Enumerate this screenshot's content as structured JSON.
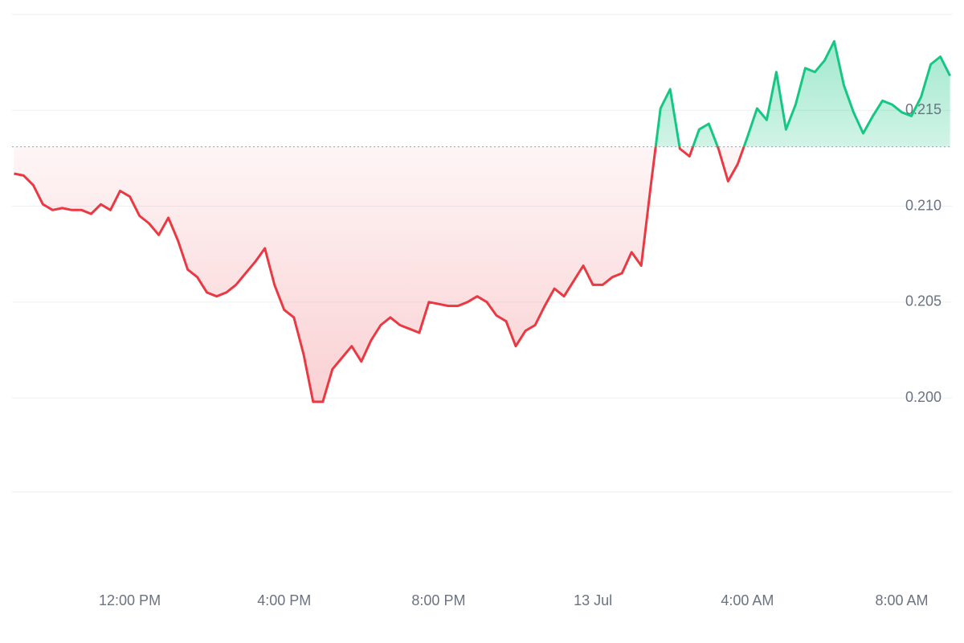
{
  "chart_data": {
    "type": "baseline-line",
    "x": [
      9,
      9.25,
      9.5,
      9.75,
      10,
      10.25,
      10.5,
      10.75,
      11,
      11.25,
      11.5,
      11.75,
      12,
      12.25,
      12.5,
      12.75,
      13,
      13.25,
      13.5,
      13.75,
      14,
      14.25,
      14.5,
      14.75,
      15,
      15.25,
      15.5,
      15.75,
      16,
      16.25,
      16.5,
      16.75,
      17,
      17.25,
      17.5,
      17.75,
      18,
      18.25,
      18.5,
      18.75,
      19,
      19.25,
      19.5,
      19.75,
      20,
      20.25,
      20.5,
      20.75,
      21,
      21.25,
      21.5,
      21.75,
      22,
      22.25,
      22.5,
      22.75,
      23,
      23.25,
      23.5,
      23.75,
      24,
      24.25,
      24.5,
      24.75,
      25,
      25.25,
      25.5,
      25.75,
      26,
      26.25,
      26.5,
      26.75,
      27,
      27.25,
      27.5,
      27.75,
      28,
      28.25,
      28.5,
      28.75,
      29,
      29.25,
      29.5,
      29.75,
      30,
      30.25,
      30.5,
      30.75,
      31,
      31.25,
      31.5,
      31.75,
      32,
      32.25,
      32.5,
      32.75,
      33,
      33.25
    ],
    "values": [
      0.2117,
      0.2116,
      0.2111,
      0.2101,
      0.2098,
      0.2099,
      0.2098,
      0.2098,
      0.2096,
      0.2101,
      0.2098,
      0.2108,
      0.2105,
      0.2095,
      0.2091,
      0.2085,
      0.2094,
      0.2082,
      0.2067,
      0.2063,
      0.2055,
      0.2053,
      0.2055,
      0.2059,
      0.2065,
      0.2071,
      0.2078,
      0.2059,
      0.2046,
      0.2042,
      0.2023,
      0.1998,
      0.1998,
      0.2015,
      0.2021,
      0.2027,
      0.2019,
      0.203,
      0.2038,
      0.2042,
      0.2038,
      0.2036,
      0.2034,
      0.205,
      0.2049,
      0.2048,
      0.2048,
      0.205,
      0.2053,
      0.205,
      0.2043,
      0.204,
      0.2027,
      0.2035,
      0.2038,
      0.2048,
      0.2057,
      0.2053,
      0.2061,
      0.2069,
      0.2059,
      0.2059,
      0.2063,
      0.2065,
      0.2076,
      0.2069,
      0.2111,
      0.2151,
      0.2161,
      0.213,
      0.2126,
      0.214,
      0.2143,
      0.213,
      0.2113,
      0.2122,
      0.2136,
      0.2151,
      0.2145,
      0.217,
      0.214,
      0.2153,
      0.2172,
      0.217,
      0.2176,
      0.2186,
      0.2163,
      0.2149,
      0.2138,
      0.2147,
      0.2155,
      0.2153,
      0.2149,
      0.2147,
      0.2157,
      0.2174,
      0.2178,
      0.2168
    ],
    "baseline": 0.2131,
    "up_color": "#16c784",
    "down_color": "#ea3943",
    "xlim": [
      8.95,
      33.3
    ],
    "xticks": [
      {
        "value": 12,
        "label": "12:00 PM"
      },
      {
        "value": 16,
        "label": "4:00 PM"
      },
      {
        "value": 20,
        "label": "8:00 PM"
      },
      {
        "value": 24,
        "label": "13 Jul"
      },
      {
        "value": 28,
        "label": "4:00 AM"
      },
      {
        "value": 32,
        "label": "8:00 AM"
      }
    ],
    "ylim": [
      0.1951,
      0.22
    ],
    "yticks": [
      {
        "value": 0.2,
        "label": "0.200"
      },
      {
        "value": 0.205,
        "label": "0.205"
      },
      {
        "value": 0.21,
        "label": "0.210"
      },
      {
        "value": 0.215,
        "label": "0.215"
      }
    ],
    "grid": true
  }
}
